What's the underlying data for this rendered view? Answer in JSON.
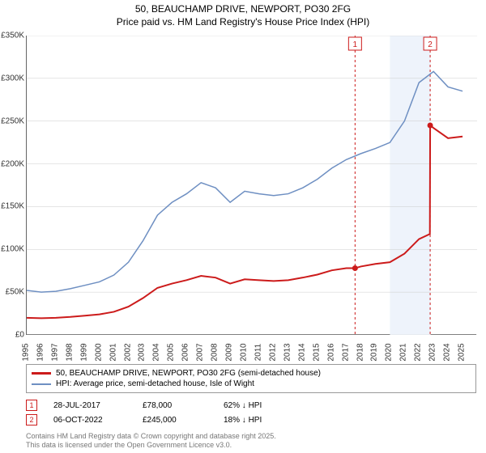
{
  "header": {
    "title": "50, BEAUCHAMP DRIVE, NEWPORT, PO30 2FG",
    "subtitle": "Price paid vs. HM Land Registry's House Price Index (HPI)"
  },
  "chart": {
    "type": "line",
    "background_color": "#ffffff",
    "grid_color": "#cccccc",
    "xlim": [
      1995,
      2026
    ],
    "ylim": [
      0,
      350000
    ],
    "ytick_step": 50000,
    "yticks": [
      0,
      50000,
      100000,
      150000,
      200000,
      250000,
      300000,
      350000
    ],
    "ytick_labels": [
      "£0",
      "£50K",
      "£100K",
      "£150K",
      "£200K",
      "£250K",
      "£300K",
      "£350K"
    ],
    "xticks": [
      1995,
      1996,
      1997,
      1998,
      1999,
      2000,
      2001,
      2002,
      2003,
      2004,
      2005,
      2006,
      2007,
      2008,
      2009,
      2010,
      2011,
      2012,
      2013,
      2014,
      2015,
      2016,
      2017,
      2018,
      2019,
      2020,
      2021,
      2022,
      2023,
      2024,
      2025
    ],
    "highlight_band": {
      "x_start": 2020,
      "x_end": 2022.8,
      "color": "#eef3fb"
    },
    "series": [
      {
        "name": "hpi",
        "label": "HPI: Average price, semi-detached house, Isle of Wight",
        "color": "#6e8fc2",
        "line_width": 1.5,
        "data": [
          [
            1995,
            52000
          ],
          [
            1996,
            50000
          ],
          [
            1997,
            51000
          ],
          [
            1998,
            54000
          ],
          [
            1999,
            58000
          ],
          [
            2000,
            62000
          ],
          [
            2001,
            70000
          ],
          [
            2002,
            85000
          ],
          [
            2003,
            110000
          ],
          [
            2004,
            140000
          ],
          [
            2005,
            155000
          ],
          [
            2006,
            165000
          ],
          [
            2007,
            178000
          ],
          [
            2008,
            172000
          ],
          [
            2009,
            155000
          ],
          [
            2010,
            168000
          ],
          [
            2011,
            165000
          ],
          [
            2012,
            163000
          ],
          [
            2013,
            165000
          ],
          [
            2014,
            172000
          ],
          [
            2015,
            182000
          ],
          [
            2016,
            195000
          ],
          [
            2017,
            205000
          ],
          [
            2018,
            212000
          ],
          [
            2019,
            218000
          ],
          [
            2020,
            225000
          ],
          [
            2021,
            250000
          ],
          [
            2022,
            295000
          ],
          [
            2023,
            308000
          ],
          [
            2024,
            290000
          ],
          [
            2025,
            285000
          ]
        ]
      },
      {
        "name": "price_paid",
        "label": "50, BEAUCHAMP DRIVE, NEWPORT, PO30 2FG (semi-detached house)",
        "color": "#cc1b1b",
        "line_width": 2,
        "data": [
          [
            1995,
            20000
          ],
          [
            1996,
            19500
          ],
          [
            1997,
            20000
          ],
          [
            1998,
            21000
          ],
          [
            1999,
            22500
          ],
          [
            2000,
            24000
          ],
          [
            2001,
            27000
          ],
          [
            2002,
            33000
          ],
          [
            2003,
            43000
          ],
          [
            2004,
            55000
          ],
          [
            2005,
            60000
          ],
          [
            2006,
            64000
          ],
          [
            2007,
            69000
          ],
          [
            2008,
            67000
          ],
          [
            2009,
            60000
          ],
          [
            2010,
            65000
          ],
          [
            2011,
            64000
          ],
          [
            2012,
            63000
          ],
          [
            2013,
            64000
          ],
          [
            2014,
            67000
          ],
          [
            2015,
            70500
          ],
          [
            2016,
            75500
          ],
          [
            2017,
            78000
          ],
          [
            2017.6,
            78000
          ],
          [
            2018,
            80000
          ],
          [
            2019,
            83000
          ],
          [
            2020,
            85000
          ],
          [
            2021,
            95000
          ],
          [
            2022,
            112000
          ],
          [
            2022.75,
            118000
          ],
          [
            2022.77,
            245000
          ],
          [
            2023,
            242000
          ],
          [
            2024,
            230000
          ],
          [
            2025,
            232000
          ]
        ]
      }
    ],
    "sale_markers": [
      {
        "id": 1,
        "x": 2017.6,
        "y_line": 350000,
        "color": "#cc1b1b"
      },
      {
        "id": 2,
        "x": 2022.77,
        "y_line": 350000,
        "color": "#cc1b1b"
      }
    ],
    "scatter_points": [
      {
        "x": 2017.6,
        "y": 78000,
        "color": "#cc1b1b"
      },
      {
        "x": 2022.77,
        "y": 245000,
        "color": "#cc1b1b"
      }
    ]
  },
  "legend": {
    "rows": [
      {
        "swatch_color": "#cc1b1b",
        "swatch_h": 3,
        "label": "50, BEAUCHAMP DRIVE, NEWPORT, PO30 2FG (semi-detached house)"
      },
      {
        "swatch_color": "#6e8fc2",
        "swatch_h": 2,
        "label": "HPI: Average price, semi-detached house, Isle of Wight"
      }
    ]
  },
  "sales": [
    {
      "id": 1,
      "date": "28-JUL-2017",
      "price": "£78,000",
      "delta": "62% ↓ HPI",
      "marker_color": "#cc1b1b"
    },
    {
      "id": 2,
      "date": "06-OCT-2022",
      "price": "£245,000",
      "delta": "18% ↓ HPI",
      "marker_color": "#cc1b1b"
    }
  ],
  "footer": {
    "line1": "Contains HM Land Registry data © Crown copyright and database right 2025.",
    "line2": "This data is licensed under the Open Government Licence v3.0."
  }
}
